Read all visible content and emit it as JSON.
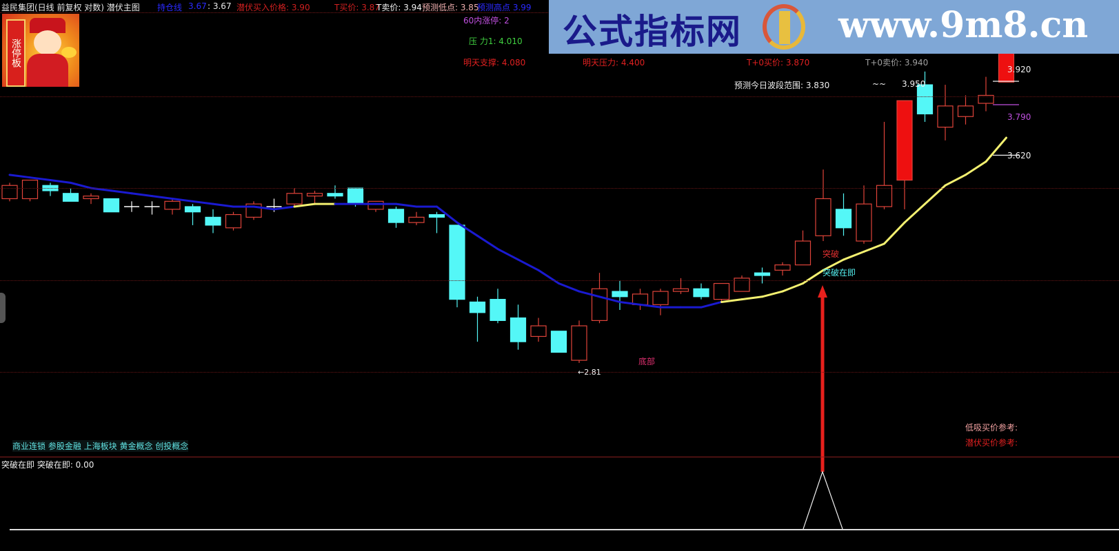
{
  "header": {
    "title": "益民集团(日线 前复权 对数) 潜伏主图",
    "hold_line_label": "持仓线",
    "hold_line_value": "3.67",
    "hold_line_value2": ": 3.67",
    "latent_buy": "潜伏买入价格: 3.90",
    "t_buy": "T买价: 3.87",
    "t_sell": "T卖价: 3.94",
    "pred_low": "预测低点: 3.85",
    "pred_high": "预测高点  3.99"
  },
  "banner": {
    "cn_text": "公式指标网",
    "url_text": "www.9m8.cn"
  },
  "mascot": {
    "scroll_text": "涨停板"
  },
  "info": {
    "limit_up_60": "60内涨停:  2",
    "pressure1": "压   力1:  4.010",
    "support_tomorrow": "明天支撑:  4.080",
    "pressure_tomorrow": "明天压力:  4.400",
    "t0_buy": "T+0买价:  3.870",
    "t0_sell": "T+0卖价:  3.940",
    "range_label": "预测今日波段范围:  3.830",
    "range_sep": "~~",
    "range_high": "3.950"
  },
  "price_marks": {
    "p1": "3.920",
    "p2": "3.790",
    "p3": "3.620",
    "low": "←2.81"
  },
  "signals": {
    "breakout": "突破",
    "breakout_soon": "突破在即",
    "bottom": "底部"
  },
  "concepts": "商业连锁 参股金融 上海板块 黄金概念 创投概念",
  "refs": {
    "low_buy": "低吸买价参考:",
    "latent_buy": "潜伏买价参考:"
  },
  "sub_panel": {
    "title": "突破在即  突破在即: 0.00",
    "value": 0.0
  },
  "colors": {
    "up": "#e0443a",
    "down": "#54f7f7",
    "ma_down": "#1a1ad0",
    "ma_up": "#f3f070",
    "arrow": "#e8201c"
  },
  "chart_data": {
    "type": "candlestick",
    "scale": "log",
    "candles_ohlc": [
      [
        3.43,
        3.49,
        3.42,
        3.48
      ],
      [
        3.43,
        3.5,
        3.42,
        3.5
      ],
      [
        3.48,
        3.49,
        3.44,
        3.46
      ],
      [
        3.45,
        3.47,
        3.42,
        3.42
      ],
      [
        3.43,
        3.45,
        3.41,
        3.44
      ],
      [
        3.43,
        3.43,
        3.38,
        3.38
      ],
      [
        3.4,
        3.42,
        3.38,
        3.4
      ],
      [
        3.4,
        3.42,
        3.37,
        3.4
      ],
      [
        3.39,
        3.43,
        3.37,
        3.42
      ],
      [
        3.4,
        3.41,
        3.33,
        3.38
      ],
      [
        3.36,
        3.39,
        3.3,
        3.33
      ],
      [
        3.32,
        3.38,
        3.31,
        3.37
      ],
      [
        3.36,
        3.42,
        3.35,
        3.41
      ],
      [
        3.4,
        3.43,
        3.38,
        3.4
      ],
      [
        3.41,
        3.47,
        3.4,
        3.45
      ],
      [
        3.44,
        3.46,
        3.41,
        3.45
      ],
      [
        3.45,
        3.48,
        3.43,
        3.44
      ],
      [
        3.47,
        3.47,
        3.4,
        3.41
      ],
      [
        3.39,
        3.42,
        3.38,
        3.42
      ],
      [
        3.39,
        3.4,
        3.32,
        3.34
      ],
      [
        3.34,
        3.38,
        3.33,
        3.36
      ],
      [
        3.37,
        3.38,
        3.3,
        3.36
      ],
      [
        3.33,
        3.33,
        3.02,
        3.05
      ],
      [
        3.04,
        3.06,
        2.89,
        3.0
      ],
      [
        3.05,
        3.09,
        2.96,
        2.97
      ],
      [
        2.98,
        3.03,
        2.86,
        2.89
      ],
      [
        2.91,
        2.98,
        2.89,
        2.95
      ],
      [
        2.93,
        2.93,
        2.85,
        2.85
      ],
      [
        2.82,
        2.97,
        2.81,
        2.95
      ],
      [
        2.97,
        3.15,
        2.96,
        3.09
      ],
      [
        3.08,
        3.12,
        3.01,
        3.06
      ],
      [
        3.03,
        3.09,
        3.01,
        3.07
      ],
      [
        3.03,
        3.09,
        2.99,
        3.08
      ],
      [
        3.08,
        3.13,
        3.07,
        3.09
      ],
      [
        3.09,
        3.11,
        3.05,
        3.06
      ],
      [
        3.05,
        3.11,
        3.04,
        3.11
      ],
      [
        3.08,
        3.14,
        3.08,
        3.13
      ],
      [
        3.15,
        3.17,
        3.11,
        3.14
      ],
      [
        3.16,
        3.19,
        3.14,
        3.18
      ],
      [
        3.18,
        3.31,
        3.18,
        3.27
      ],
      [
        3.29,
        3.54,
        3.27,
        3.43
      ],
      [
        3.39,
        3.45,
        3.29,
        3.32
      ],
      [
        3.27,
        3.48,
        3.26,
        3.41
      ],
      [
        3.4,
        3.72,
        3.39,
        3.48
      ],
      [
        3.5,
        3.8,
        3.39,
        3.8
      ],
      [
        3.86,
        3.91,
        3.72,
        3.75
      ],
      [
        3.7,
        3.86,
        3.65,
        3.78
      ],
      [
        3.74,
        3.82,
        3.71,
        3.78
      ],
      [
        3.79,
        3.89,
        3.76,
        3.82
      ],
      [
        3.87,
        3.98,
        3.87,
        3.98
      ]
    ],
    "limit_up_indices": [
      44,
      49
    ],
    "ma_line": [
      3.52,
      3.51,
      3.5,
      3.49,
      3.47,
      3.46,
      3.45,
      3.44,
      3.43,
      3.42,
      3.41,
      3.4,
      3.4,
      3.39,
      3.4,
      3.41,
      3.41,
      3.41,
      3.41,
      3.41,
      3.4,
      3.4,
      3.34,
      3.29,
      3.24,
      3.2,
      3.16,
      3.11,
      3.08,
      3.06,
      3.04,
      3.03,
      3.02,
      3.02,
      3.02,
      3.04,
      3.05,
      3.06,
      3.08,
      3.11,
      3.16,
      3.2,
      3.23,
      3.26,
      3.34,
      3.41,
      3.48,
      3.52,
      3.57,
      3.66
    ],
    "ma_rising_ranges": [
      [
        14,
        16
      ],
      [
        35,
        49
      ]
    ],
    "low_marker": 2.81,
    "level_lines": [
      3.92,
      3.79,
      3.62
    ]
  }
}
